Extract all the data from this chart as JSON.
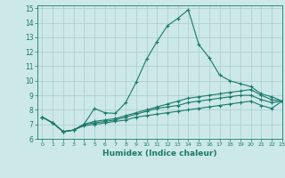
{
  "xlabel": "Humidex (Indice chaleur)",
  "ylabel": "",
  "background_color": "#cce8e8",
  "grid_color": "#aacccc",
  "line_color": "#1a7a6a",
  "xlim": [
    -0.5,
    23
  ],
  "ylim": [
    6,
    15.2
  ],
  "xticks": [
    0,
    1,
    2,
    3,
    4,
    5,
    6,
    7,
    8,
    9,
    10,
    11,
    12,
    13,
    14,
    15,
    16,
    17,
    18,
    19,
    20,
    21,
    22,
    23
  ],
  "yticks": [
    6,
    7,
    8,
    9,
    10,
    11,
    12,
    13,
    14,
    15
  ],
  "series": [
    [
      7.5,
      7.1,
      6.5,
      6.6,
      7.0,
      8.1,
      7.8,
      7.75,
      8.5,
      9.9,
      11.5,
      12.7,
      13.8,
      14.3,
      14.9,
      12.5,
      11.6,
      10.4,
      10.0,
      9.8,
      9.6,
      9.1,
      8.9,
      8.6
    ],
    [
      7.5,
      7.1,
      6.5,
      6.6,
      7.0,
      7.2,
      7.3,
      7.4,
      7.6,
      7.8,
      8.0,
      8.2,
      8.4,
      8.6,
      8.8,
      8.9,
      9.0,
      9.1,
      9.2,
      9.3,
      9.4,
      9.0,
      8.7,
      8.6
    ],
    [
      7.5,
      7.1,
      6.5,
      6.6,
      7.0,
      7.1,
      7.2,
      7.3,
      7.5,
      7.7,
      7.9,
      8.1,
      8.2,
      8.3,
      8.5,
      8.6,
      8.7,
      8.8,
      8.9,
      9.0,
      9.0,
      8.7,
      8.5,
      8.6
    ],
    [
      7.5,
      7.1,
      6.5,
      6.6,
      6.9,
      7.0,
      7.1,
      7.2,
      7.3,
      7.5,
      7.6,
      7.7,
      7.8,
      7.9,
      8.0,
      8.1,
      8.2,
      8.3,
      8.4,
      8.5,
      8.6,
      8.3,
      8.1,
      8.6
    ]
  ]
}
